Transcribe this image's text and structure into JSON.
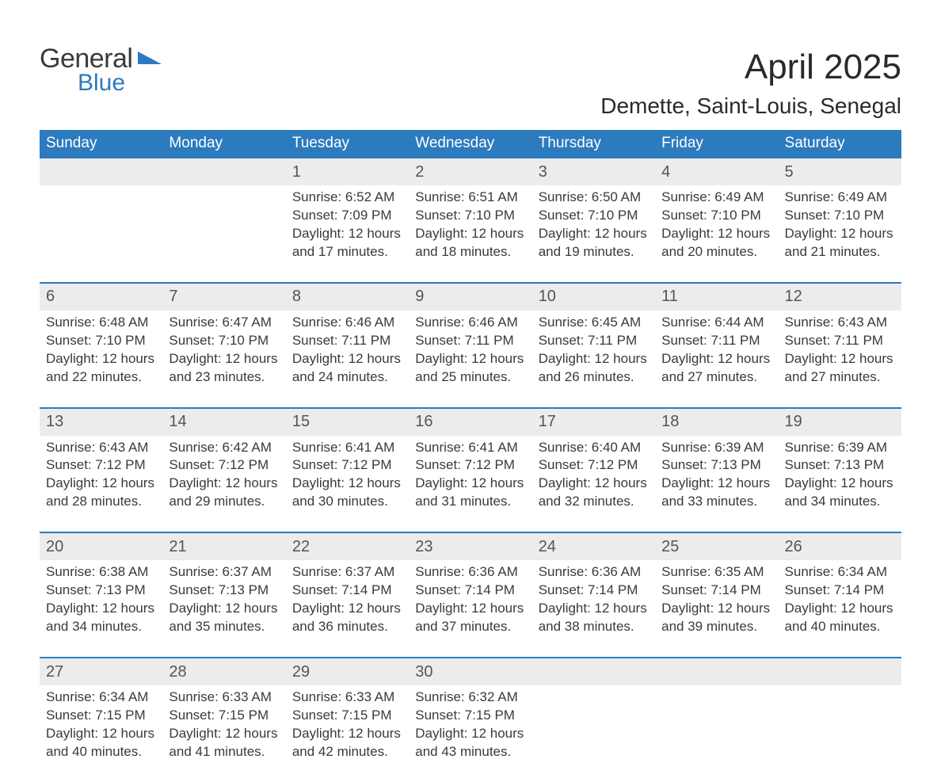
{
  "logo": {
    "word1": "General",
    "word2": "Blue",
    "tri_color": "#2c7bbf"
  },
  "header": {
    "month": "April 2025",
    "location": "Demette, Saint-Louis, Senegal"
  },
  "dow": [
    "Sunday",
    "Monday",
    "Tuesday",
    "Wednesday",
    "Thursday",
    "Friday",
    "Saturday"
  ],
  "colors": {
    "accent": "#2c7bbf",
    "row_bg": "#ececec",
    "text": "#3a3a3a",
    "bg": "#ffffff"
  },
  "cells": [
    [
      null,
      null,
      {
        "n": "1",
        "sr": "Sunrise: 6:52 AM",
        "ss": "Sunset: 7:09 PM",
        "d1": "Daylight: 12 hours",
        "d2": "and 17 minutes."
      },
      {
        "n": "2",
        "sr": "Sunrise: 6:51 AM",
        "ss": "Sunset: 7:10 PM",
        "d1": "Daylight: 12 hours",
        "d2": "and 18 minutes."
      },
      {
        "n": "3",
        "sr": "Sunrise: 6:50 AM",
        "ss": "Sunset: 7:10 PM",
        "d1": "Daylight: 12 hours",
        "d2": "and 19 minutes."
      },
      {
        "n": "4",
        "sr": "Sunrise: 6:49 AM",
        "ss": "Sunset: 7:10 PM",
        "d1": "Daylight: 12 hours",
        "d2": "and 20 minutes."
      },
      {
        "n": "5",
        "sr": "Sunrise: 6:49 AM",
        "ss": "Sunset: 7:10 PM",
        "d1": "Daylight: 12 hours",
        "d2": "and 21 minutes."
      }
    ],
    [
      {
        "n": "6",
        "sr": "Sunrise: 6:48 AM",
        "ss": "Sunset: 7:10 PM",
        "d1": "Daylight: 12 hours",
        "d2": "and 22 minutes."
      },
      {
        "n": "7",
        "sr": "Sunrise: 6:47 AM",
        "ss": "Sunset: 7:10 PM",
        "d1": "Daylight: 12 hours",
        "d2": "and 23 minutes."
      },
      {
        "n": "8",
        "sr": "Sunrise: 6:46 AM",
        "ss": "Sunset: 7:11 PM",
        "d1": "Daylight: 12 hours",
        "d2": "and 24 minutes."
      },
      {
        "n": "9",
        "sr": "Sunrise: 6:46 AM",
        "ss": "Sunset: 7:11 PM",
        "d1": "Daylight: 12 hours",
        "d2": "and 25 minutes."
      },
      {
        "n": "10",
        "sr": "Sunrise: 6:45 AM",
        "ss": "Sunset: 7:11 PM",
        "d1": "Daylight: 12 hours",
        "d2": "and 26 minutes."
      },
      {
        "n": "11",
        "sr": "Sunrise: 6:44 AM",
        "ss": "Sunset: 7:11 PM",
        "d1": "Daylight: 12 hours",
        "d2": "and 27 minutes."
      },
      {
        "n": "12",
        "sr": "Sunrise: 6:43 AM",
        "ss": "Sunset: 7:11 PM",
        "d1": "Daylight: 12 hours",
        "d2": "and 27 minutes."
      }
    ],
    [
      {
        "n": "13",
        "sr": "Sunrise: 6:43 AM",
        "ss": "Sunset: 7:12 PM",
        "d1": "Daylight: 12 hours",
        "d2": "and 28 minutes."
      },
      {
        "n": "14",
        "sr": "Sunrise: 6:42 AM",
        "ss": "Sunset: 7:12 PM",
        "d1": "Daylight: 12 hours",
        "d2": "and 29 minutes."
      },
      {
        "n": "15",
        "sr": "Sunrise: 6:41 AM",
        "ss": "Sunset: 7:12 PM",
        "d1": "Daylight: 12 hours",
        "d2": "and 30 minutes."
      },
      {
        "n": "16",
        "sr": "Sunrise: 6:41 AM",
        "ss": "Sunset: 7:12 PM",
        "d1": "Daylight: 12 hours",
        "d2": "and 31 minutes."
      },
      {
        "n": "17",
        "sr": "Sunrise: 6:40 AM",
        "ss": "Sunset: 7:12 PM",
        "d1": "Daylight: 12 hours",
        "d2": "and 32 minutes."
      },
      {
        "n": "18",
        "sr": "Sunrise: 6:39 AM",
        "ss": "Sunset: 7:13 PM",
        "d1": "Daylight: 12 hours",
        "d2": "and 33 minutes."
      },
      {
        "n": "19",
        "sr": "Sunrise: 6:39 AM",
        "ss": "Sunset: 7:13 PM",
        "d1": "Daylight: 12 hours",
        "d2": "and 34 minutes."
      }
    ],
    [
      {
        "n": "20",
        "sr": "Sunrise: 6:38 AM",
        "ss": "Sunset: 7:13 PM",
        "d1": "Daylight: 12 hours",
        "d2": "and 34 minutes."
      },
      {
        "n": "21",
        "sr": "Sunrise: 6:37 AM",
        "ss": "Sunset: 7:13 PM",
        "d1": "Daylight: 12 hours",
        "d2": "and 35 minutes."
      },
      {
        "n": "22",
        "sr": "Sunrise: 6:37 AM",
        "ss": "Sunset: 7:14 PM",
        "d1": "Daylight: 12 hours",
        "d2": "and 36 minutes."
      },
      {
        "n": "23",
        "sr": "Sunrise: 6:36 AM",
        "ss": "Sunset: 7:14 PM",
        "d1": "Daylight: 12 hours",
        "d2": "and 37 minutes."
      },
      {
        "n": "24",
        "sr": "Sunrise: 6:36 AM",
        "ss": "Sunset: 7:14 PM",
        "d1": "Daylight: 12 hours",
        "d2": "and 38 minutes."
      },
      {
        "n": "25",
        "sr": "Sunrise: 6:35 AM",
        "ss": "Sunset: 7:14 PM",
        "d1": "Daylight: 12 hours",
        "d2": "and 39 minutes."
      },
      {
        "n": "26",
        "sr": "Sunrise: 6:34 AM",
        "ss": "Sunset: 7:14 PM",
        "d1": "Daylight: 12 hours",
        "d2": "and 40 minutes."
      }
    ],
    [
      {
        "n": "27",
        "sr": "Sunrise: 6:34 AM",
        "ss": "Sunset: 7:15 PM",
        "d1": "Daylight: 12 hours",
        "d2": "and 40 minutes."
      },
      {
        "n": "28",
        "sr": "Sunrise: 6:33 AM",
        "ss": "Sunset: 7:15 PM",
        "d1": "Daylight: 12 hours",
        "d2": "and 41 minutes."
      },
      {
        "n": "29",
        "sr": "Sunrise: 6:33 AM",
        "ss": "Sunset: 7:15 PM",
        "d1": "Daylight: 12 hours",
        "d2": "and 42 minutes."
      },
      {
        "n": "30",
        "sr": "Sunrise: 6:32 AM",
        "ss": "Sunset: 7:15 PM",
        "d1": "Daylight: 12 hours",
        "d2": "and 43 minutes."
      },
      null,
      null,
      null
    ]
  ]
}
